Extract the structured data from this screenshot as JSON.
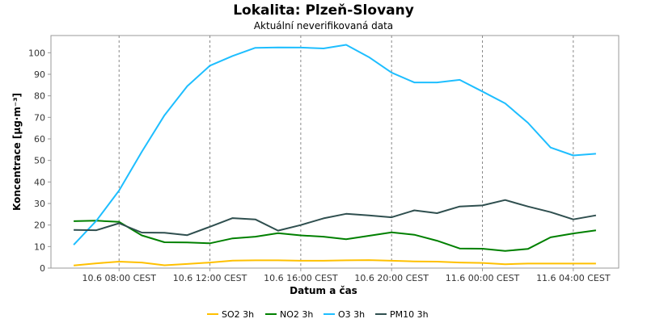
{
  "chart_data": {
    "type": "line",
    "title": "Lokalita: Plzeň-Slovany",
    "subtitle": "Aktuální neverifikovaná data",
    "xlabel": "Datum a čas",
    "ylabel": "Koncentrace [µg·m⁻³]",
    "ylim": [
      0,
      108
    ],
    "yticks": [
      0,
      10,
      20,
      30,
      40,
      50,
      60,
      70,
      80,
      90,
      100
    ],
    "x_hours": [
      "10.6 06:00",
      "10.6 07:00",
      "10.6 08:00",
      "10.6 09:00",
      "10.6 10:00",
      "10.6 11:00",
      "10.6 12:00",
      "10.6 13:00",
      "10.6 14:00",
      "10.6 15:00",
      "10.6 16:00",
      "10.6 17:00",
      "10.6 18:00",
      "10.6 19:00",
      "10.6 20:00",
      "10.6 21:00",
      "10.6 22:00",
      "10.6 23:00",
      "11.6 00:00",
      "11.6 01:00",
      "11.6 02:00",
      "11.6 03:00",
      "11.6 04:00",
      "11.6 05:00"
    ],
    "xlim": [
      "10.6 05:00",
      "11.6 06:00"
    ],
    "xticks": [
      {
        "at": "10.6 08:00",
        "label": "10.6 08:00 CEST"
      },
      {
        "at": "10.6 12:00",
        "label": "10.6 12:00 CEST"
      },
      {
        "at": "10.6 16:00",
        "label": "10.6 16:00 CEST"
      },
      {
        "at": "10.6 20:00",
        "label": "10.6 20:00 CEST"
      },
      {
        "at": "11.6 00:00",
        "label": "11.6 00:00 CEST"
      },
      {
        "at": "11.6 04:00",
        "label": "11.6 04:00 CEST"
      }
    ],
    "grid": true,
    "legend_position": "bottom",
    "series": [
      {
        "name": "SO2 3h",
        "color": "#ffc000",
        "values": [
          1.2,
          2.2,
          3.0,
          2.6,
          1.3,
          1.9,
          2.6,
          3.5,
          3.6,
          3.6,
          3.4,
          3.4,
          3.6,
          3.7,
          3.4,
          3.1,
          3.0,
          2.6,
          2.4,
          1.8,
          2.1,
          2.1,
          2.1,
          2.1
        ]
      },
      {
        "name": "NO2 3h",
        "color": "#008000",
        "values": [
          21.8,
          22.0,
          21.5,
          15.2,
          12.0,
          11.9,
          11.5,
          13.8,
          14.6,
          16.2,
          15.2,
          14.6,
          13.4,
          15.0,
          16.6,
          15.5,
          12.7,
          9.1,
          9.0,
          8.0,
          8.9,
          14.3,
          16.1,
          17.5
        ]
      },
      {
        "name": "O3 3h",
        "color": "#1ebeff",
        "values": [
          10.8,
          22.0,
          36.0,
          54.0,
          71.0,
          84.5,
          94.0,
          98.5,
          102.3,
          102.5,
          102.4,
          102.0,
          103.7,
          98.0,
          90.8,
          86.2,
          86.2,
          87.4,
          82.0,
          76.5,
          67.5,
          56.0,
          52.3,
          53.1
        ]
      },
      {
        "name": "PM10 3h",
        "color": "#2f4f4f",
        "values": [
          17.7,
          17.6,
          20.8,
          16.5,
          16.4,
          15.3,
          19.2,
          23.2,
          22.6,
          17.4,
          20.0,
          23.1,
          25.2,
          24.5,
          23.6,
          26.8,
          25.5,
          28.6,
          29.1,
          31.6,
          28.6,
          26.0,
          22.6,
          24.5
        ]
      }
    ]
  }
}
